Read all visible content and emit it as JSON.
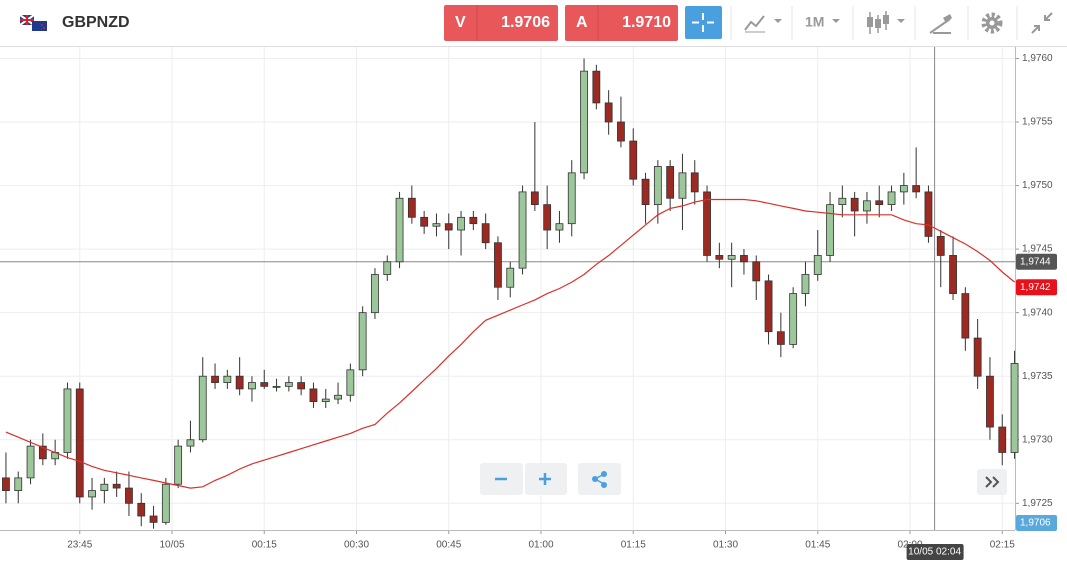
{
  "toolbar": {
    "symbol": "GBPNZD",
    "sell_label": "V",
    "sell_price": "1.9706",
    "buy_label": "A",
    "buy_price": "1.9710",
    "timeframe": "1M"
  },
  "chart_data": {
    "type": "candlestick",
    "x": [
      "23:33",
      "23:35",
      "23:37",
      "23:39",
      "23:41",
      "23:43",
      "23:45",
      "23:47",
      "23:49",
      "23:51",
      "23:53",
      "23:55",
      "23:57",
      "23:59",
      "00:01",
      "00:03",
      "00:05",
      "00:07",
      "00:09",
      "00:11",
      "00:13",
      "00:15",
      "00:17",
      "00:19",
      "00:21",
      "00:23",
      "00:25",
      "00:27",
      "00:29",
      "00:31",
      "00:33",
      "00:35",
      "00:37",
      "00:39",
      "00:41",
      "00:43",
      "00:45",
      "00:47",
      "00:49",
      "00:51",
      "00:53",
      "00:55",
      "00:57",
      "00:59",
      "01:01",
      "01:03",
      "01:05",
      "01:07",
      "01:09",
      "01:11",
      "01:13",
      "01:15",
      "01:17",
      "01:19",
      "01:21",
      "01:23",
      "01:25",
      "01:27",
      "01:29",
      "01:31",
      "01:33",
      "01:35",
      "01:37",
      "01:39",
      "01:41",
      "01:43",
      "01:45",
      "01:47",
      "01:49",
      "01:51",
      "01:53",
      "01:55",
      "01:57",
      "01:59",
      "02:01",
      "02:03",
      "02:05",
      "02:07",
      "02:09",
      "02:11",
      "02:13",
      "02:15",
      "02:17"
    ],
    "open": [
      1.9727,
      1.9726,
      1.9727,
      1.97295,
      1.97285,
      1.9729,
      1.9734,
      1.97255,
      1.9726,
      1.97265,
      1.97262,
      1.9725,
      1.9724,
      1.97235,
      1.97265,
      1.97295,
      1.973,
      1.9735,
      1.97345,
      1.9735,
      1.9734,
      1.97345,
      1.97342,
      1.97342,
      1.97345,
      1.9734,
      1.9733,
      1.97332,
      1.97335,
      1.97355,
      1.974,
      1.9743,
      1.9744,
      1.9749,
      1.97475,
      1.97468,
      1.9747,
      1.97465,
      1.97475,
      1.9747,
      1.97455,
      1.9742,
      1.97435,
      1.97495,
      1.97485,
      1.97465,
      1.9747,
      1.9751,
      1.9759,
      1.97565,
      1.9755,
      1.97535,
      1.97505,
      1.97485,
      1.97515,
      1.9749,
      1.9751,
      1.97495,
      1.97445,
      1.97442,
      1.97445,
      1.9744,
      1.97425,
      1.97385,
      1.97375,
      1.97415,
      1.9743,
      1.97445,
      1.97485,
      1.9749,
      1.9748,
      1.97488,
      1.97485,
      1.97495,
      1.975,
      1.97495,
      1.9746,
      1.97445,
      1.97415,
      1.9738,
      1.9735,
      1.9731,
      1.9729
    ],
    "high": [
      1.9729,
      1.97275,
      1.973,
      1.97305,
      1.973,
      1.97345,
      1.97345,
      1.9727,
      1.9727,
      1.97275,
      1.97275,
      1.97258,
      1.97248,
      1.9727,
      1.973,
      1.97315,
      1.97365,
      1.9736,
      1.97355,
      1.97365,
      1.9735,
      1.97355,
      1.97348,
      1.9735,
      1.9735,
      1.97345,
      1.9734,
      1.97345,
      1.9736,
      1.97405,
      1.97435,
      1.97445,
      1.97495,
      1.975,
      1.9748,
      1.97478,
      1.97478,
      1.9748,
      1.9748,
      1.97478,
      1.9746,
      1.9744,
      1.975,
      1.9755,
      1.975,
      1.9748,
      1.9752,
      1.976,
      1.97595,
      1.97575,
      1.9757,
      1.97545,
      1.9751,
      1.9752,
      1.9752,
      1.97525,
      1.9752,
      1.975,
      1.97455,
      1.97455,
      1.9745,
      1.97445,
      1.9743,
      1.974,
      1.9742,
      1.9744,
      1.97465,
      1.97495,
      1.975,
      1.97495,
      1.97495,
      1.975,
      1.975,
      1.9751,
      1.9753,
      1.975,
      1.97465,
      1.9746,
      1.9742,
      1.97395,
      1.97365,
      1.9732,
      1.9737
    ],
    "low": [
      1.9725,
      1.9725,
      1.97265,
      1.9728,
      1.9728,
      1.97285,
      1.9725,
      1.97245,
      1.9725,
      1.97255,
      1.9724,
      1.97232,
      1.9723,
      1.97233,
      1.97262,
      1.9729,
      1.97298,
      1.9734,
      1.9734,
      1.97335,
      1.9733,
      1.9734,
      1.97338,
      1.97338,
      1.97335,
      1.97325,
      1.97325,
      1.97328,
      1.9733,
      1.9735,
      1.97395,
      1.97425,
      1.97435,
      1.9747,
      1.97462,
      1.9746,
      1.9745,
      1.97445,
      1.97465,
      1.9745,
      1.9741,
      1.97412,
      1.9743,
      1.9748,
      1.9745,
      1.97455,
      1.9746,
      1.97505,
      1.9756,
      1.9754,
      1.9753,
      1.975,
      1.9747,
      1.9747,
      1.9748,
      1.97465,
      1.97485,
      1.9744,
      1.97435,
      1.9742,
      1.9743,
      1.9741,
      1.97375,
      1.97365,
      1.97372,
      1.97405,
      1.97425,
      1.9744,
      1.97475,
      1.9746,
      1.9747,
      1.97475,
      1.9748,
      1.97485,
      1.9749,
      1.97455,
      1.9742,
      1.9741,
      1.9737,
      1.9734,
      1.973,
      1.9728,
      1.97285
    ],
    "close": [
      1.9726,
      1.9727,
      1.97295,
      1.97285,
      1.9729,
      1.9734,
      1.97255,
      1.9726,
      1.97265,
      1.97262,
      1.9725,
      1.9724,
      1.97235,
      1.97265,
      1.97295,
      1.973,
      1.9735,
      1.97345,
      1.9735,
      1.9734,
      1.97345,
      1.97342,
      1.97342,
      1.97345,
      1.9734,
      1.9733,
      1.97332,
      1.97335,
      1.97355,
      1.974,
      1.9743,
      1.9744,
      1.9749,
      1.97475,
      1.97468,
      1.9747,
      1.97465,
      1.97475,
      1.9747,
      1.97455,
      1.9742,
      1.97435,
      1.97495,
      1.97485,
      1.97465,
      1.9747,
      1.9751,
      1.9759,
      1.97565,
      1.9755,
      1.97535,
      1.97505,
      1.97485,
      1.97515,
      1.9749,
      1.9751,
      1.97495,
      1.97445,
      1.97442,
      1.97445,
      1.9744,
      1.97425,
      1.97385,
      1.97375,
      1.97415,
      1.9743,
      1.97445,
      1.97485,
      1.9749,
      1.9748,
      1.97488,
      1.97485,
      1.97495,
      1.975,
      1.97495,
      1.9746,
      1.97445,
      1.97415,
      1.9738,
      1.9735,
      1.9731,
      1.9729,
      1.9736
    ],
    "up_color": "#9cc79a",
    "down_color": "#9b2a22",
    "moving_average": {
      "color": "#d9302c",
      "values": [
        1.97306,
        1.97302,
        1.97298,
        1.97294,
        1.9729,
        1.97286,
        1.97283,
        1.97279,
        1.97276,
        1.97274,
        1.97272,
        1.9727,
        1.97268,
        1.97266,
        1.97264,
        1.97262,
        1.97263,
        1.97268,
        1.97272,
        1.97277,
        1.97281,
        1.97284,
        1.97287,
        1.9729,
        1.97293,
        1.97296,
        1.97299,
        1.97302,
        1.97305,
        1.97309,
        1.97312,
        1.97321,
        1.97329,
        1.97338,
        1.97347,
        1.97356,
        1.97366,
        1.97375,
        1.97385,
        1.97394,
        1.97398,
        1.97402,
        1.97406,
        1.9741,
        1.97415,
        1.97419,
        1.97424,
        1.9743,
        1.97438,
        1.97445,
        1.97453,
        1.97461,
        1.97469,
        1.97477,
        1.97482,
        1.97484,
        1.97487,
        1.97489,
        1.97489,
        1.97489,
        1.97489,
        1.97488,
        1.97486,
        1.97484,
        1.97482,
        1.9748,
        1.97479,
        1.97478,
        1.97477,
        1.97477,
        1.97477,
        1.97477,
        1.97477,
        1.97473,
        1.9747,
        1.97469,
        1.97464,
        1.97459,
        1.97454,
        1.97448,
        1.97441,
        1.97432,
        1.97424
      ]
    },
    "ylim": [
      1.97229,
      1.97609
    ],
    "yticks": [
      {
        "value": 1.9725,
        "label": "1,9725"
      },
      {
        "value": 1.973,
        "label": "1,9730"
      },
      {
        "value": 1.9735,
        "label": "1,9735"
      },
      {
        "value": 1.974,
        "label": "1,9740"
      },
      {
        "value": 1.9745,
        "label": "1,9745"
      },
      {
        "value": 1.975,
        "label": "1,9750"
      },
      {
        "value": 1.9755,
        "label": "1,9755"
      },
      {
        "value": 1.976,
        "label": "1,9760"
      }
    ],
    "xticks": [
      "23:45",
      {
        "value": "00:00",
        "label": "10/05"
      },
      "00:15",
      "00:30",
      "00:45",
      "01:00",
      "01:15",
      "01:30",
      "01:45",
      "02:00",
      "02:15"
    ],
    "grid": true,
    "crosshair_y": {
      "value": 1.9744,
      "label": "1,9744"
    },
    "crosshair_x": {
      "value": "02:04",
      "label": "10/05 02:04"
    },
    "last_price": {
      "value": 1.9742,
      "label": "1,9742"
    },
    "bid_price": {
      "value": 1.9706,
      "label": "1,9706"
    }
  }
}
